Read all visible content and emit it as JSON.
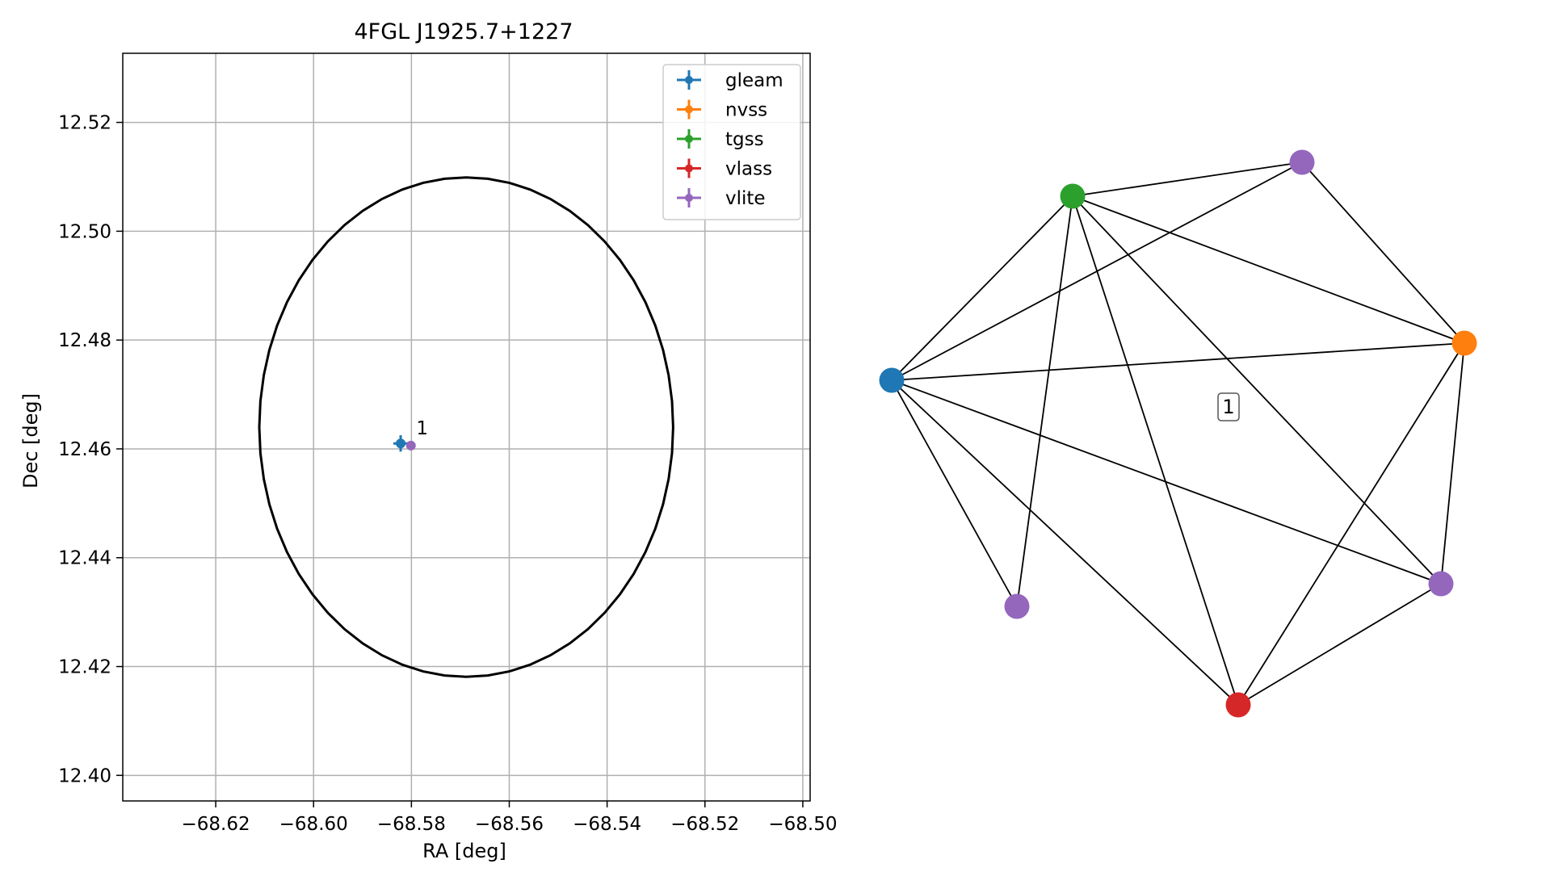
{
  "colors": {
    "gleam": "#1f77b4",
    "nvss": "#ff7f0e",
    "tgss": "#2ca02c",
    "vlass": "#d62728",
    "vlite": "#9467bd",
    "grid": "#b0b0b0",
    "ellipse": "#000000",
    "edge": "#000000"
  },
  "chart_data": [
    {
      "type": "scatter",
      "title": "4FGL J1925.7+1227",
      "xlabel": "RA [deg]",
      "ylabel": "Dec [deg]",
      "xlim": [
        -68.639,
        -68.4985
      ],
      "ylim": [
        12.3953,
        12.5327
      ],
      "xticks": [
        -68.62,
        -68.6,
        -68.58,
        -68.56,
        -68.54,
        -68.52,
        -68.5
      ],
      "xtick_labels": [
        "−68.62",
        "−68.60",
        "−68.58",
        "−68.56",
        "−68.54",
        "−68.52",
        "−68.50"
      ],
      "yticks": [
        12.4,
        12.42,
        12.44,
        12.46,
        12.48,
        12.5,
        12.52
      ],
      "ytick_labels": [
        "12.40",
        "12.42",
        "12.44",
        "12.46",
        "12.48",
        "12.50",
        "12.52"
      ],
      "grid": true,
      "legend_position": "top-right",
      "series": [
        {
          "name": "gleam",
          "x": [
            -68.5822
          ],
          "y": [
            12.461
          ],
          "xerr": 0.0015,
          "yerr": 0.0015
        },
        {
          "name": "nvss",
          "x": [],
          "y": []
        },
        {
          "name": "tgss",
          "x": [],
          "y": []
        },
        {
          "name": "vlass",
          "x": [],
          "y": []
        },
        {
          "name": "vlite",
          "x": [
            -68.5801
          ],
          "y": [
            12.4606
          ],
          "xerr": 0.0003,
          "yerr": 0.0003
        }
      ],
      "annotations": [
        {
          "text": "1",
          "x": -68.579,
          "y": 12.4627
        }
      ],
      "ellipse": {
        "center": [
          -68.5688,
          12.464
        ],
        "ra_halfwidth": 0.0423,
        "dec_halfheight": 0.0459
      }
    },
    {
      "type": "graph",
      "nodes": [
        {
          "id": "gleam",
          "series": "gleam"
        },
        {
          "id": "nvss",
          "series": "nvss"
        },
        {
          "id": "tgss",
          "series": "tgss"
        },
        {
          "id": "vlass",
          "series": "vlass"
        },
        {
          "id": "vlite_top",
          "series": "vlite"
        },
        {
          "id": "vlite_right",
          "series": "vlite"
        },
        {
          "id": "vlite_bottom_left",
          "series": "vlite"
        }
      ],
      "edges": [
        [
          "gleam",
          "tgss"
        ],
        [
          "gleam",
          "vlite_top"
        ],
        [
          "gleam",
          "nvss"
        ],
        [
          "gleam",
          "vlite_bottom_left"
        ],
        [
          "gleam",
          "vlass"
        ],
        [
          "gleam",
          "vlite_right"
        ],
        [
          "tgss",
          "vlite_top"
        ],
        [
          "tgss",
          "nvss"
        ],
        [
          "tgss",
          "vlite_right"
        ],
        [
          "tgss",
          "vlass"
        ],
        [
          "tgss",
          "vlite_bottom_left"
        ],
        [
          "vlite_top",
          "nvss"
        ],
        [
          "nvss",
          "vlite_right"
        ],
        [
          "nvss",
          "vlass"
        ],
        [
          "vlite_right",
          "vlass"
        ]
      ],
      "label": "1"
    }
  ]
}
